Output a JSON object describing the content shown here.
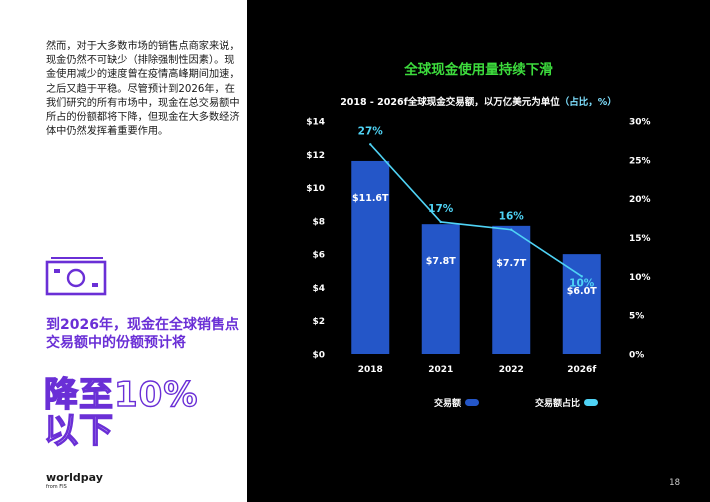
{
  "left": {
    "body_text": "然而，对于大多数市场的销售点商家来说，现金仍然不可缺少（排除强制性因素）。现金使用减少的速度曾在疫情高峰期间加速，之后又趋于平稳。尽管预计到2026年，在我们研究的所有市场中，现金在总交易额中所占的份额都将下降，但现金在大多数经济体中仍然发挥着重要作用。",
    "headline": "到2026年，现金在全球销售点交易额中的份额预计将",
    "big_figure_line1": "降至10%",
    "big_figure_line2": "以下",
    "logo_main": "worldpay",
    "logo_sub": "from FIS"
  },
  "page_number": "18",
  "colors": {
    "accent_purple": "#6a2fd6",
    "title_green": "#3ddc3d",
    "bar_blue": "#2456c8",
    "line_cyan": "#4fd3f5"
  },
  "chart_data": {
    "type": "bar",
    "title": "全球现金使用量持续下滑",
    "subtitle_main": "2018 - 2026f全球现金交易额，以万亿美元为单位",
    "subtitle_paren": "（占比，%）",
    "categories": [
      "2018",
      "2021",
      "2022",
      "2026f"
    ],
    "series": [
      {
        "name": "交易额",
        "type": "bar",
        "axis": "left",
        "values": [
          11.6,
          7.8,
          7.7,
          6.0
        ],
        "labels": [
          "$11.6T",
          "$7.8T",
          "$7.7T",
          "$6.0T"
        ],
        "color": "#2456c8"
      },
      {
        "name": "交易额占比",
        "type": "line",
        "axis": "right",
        "values": [
          27,
          17,
          16,
          10
        ],
        "labels": [
          "27%",
          "17%",
          "16%",
          "10%"
        ],
        "color": "#4fd3f5"
      }
    ],
    "y_left": {
      "min": 0,
      "max": 14,
      "ticks": [
        "$0",
        "$2",
        "$4",
        "$6",
        "$8",
        "$10",
        "$12",
        "$14"
      ],
      "tick_values": [
        0,
        2,
        4,
        6,
        8,
        10,
        12,
        14
      ]
    },
    "y_right": {
      "min": 0,
      "max": 30,
      "ticks": [
        "0%",
        "5%",
        "10%",
        "15%",
        "20%",
        "25%",
        "30%"
      ],
      "tick_values": [
        0,
        5,
        10,
        15,
        20,
        25,
        30
      ]
    },
    "legend_position": "bottom",
    "grid": false
  }
}
